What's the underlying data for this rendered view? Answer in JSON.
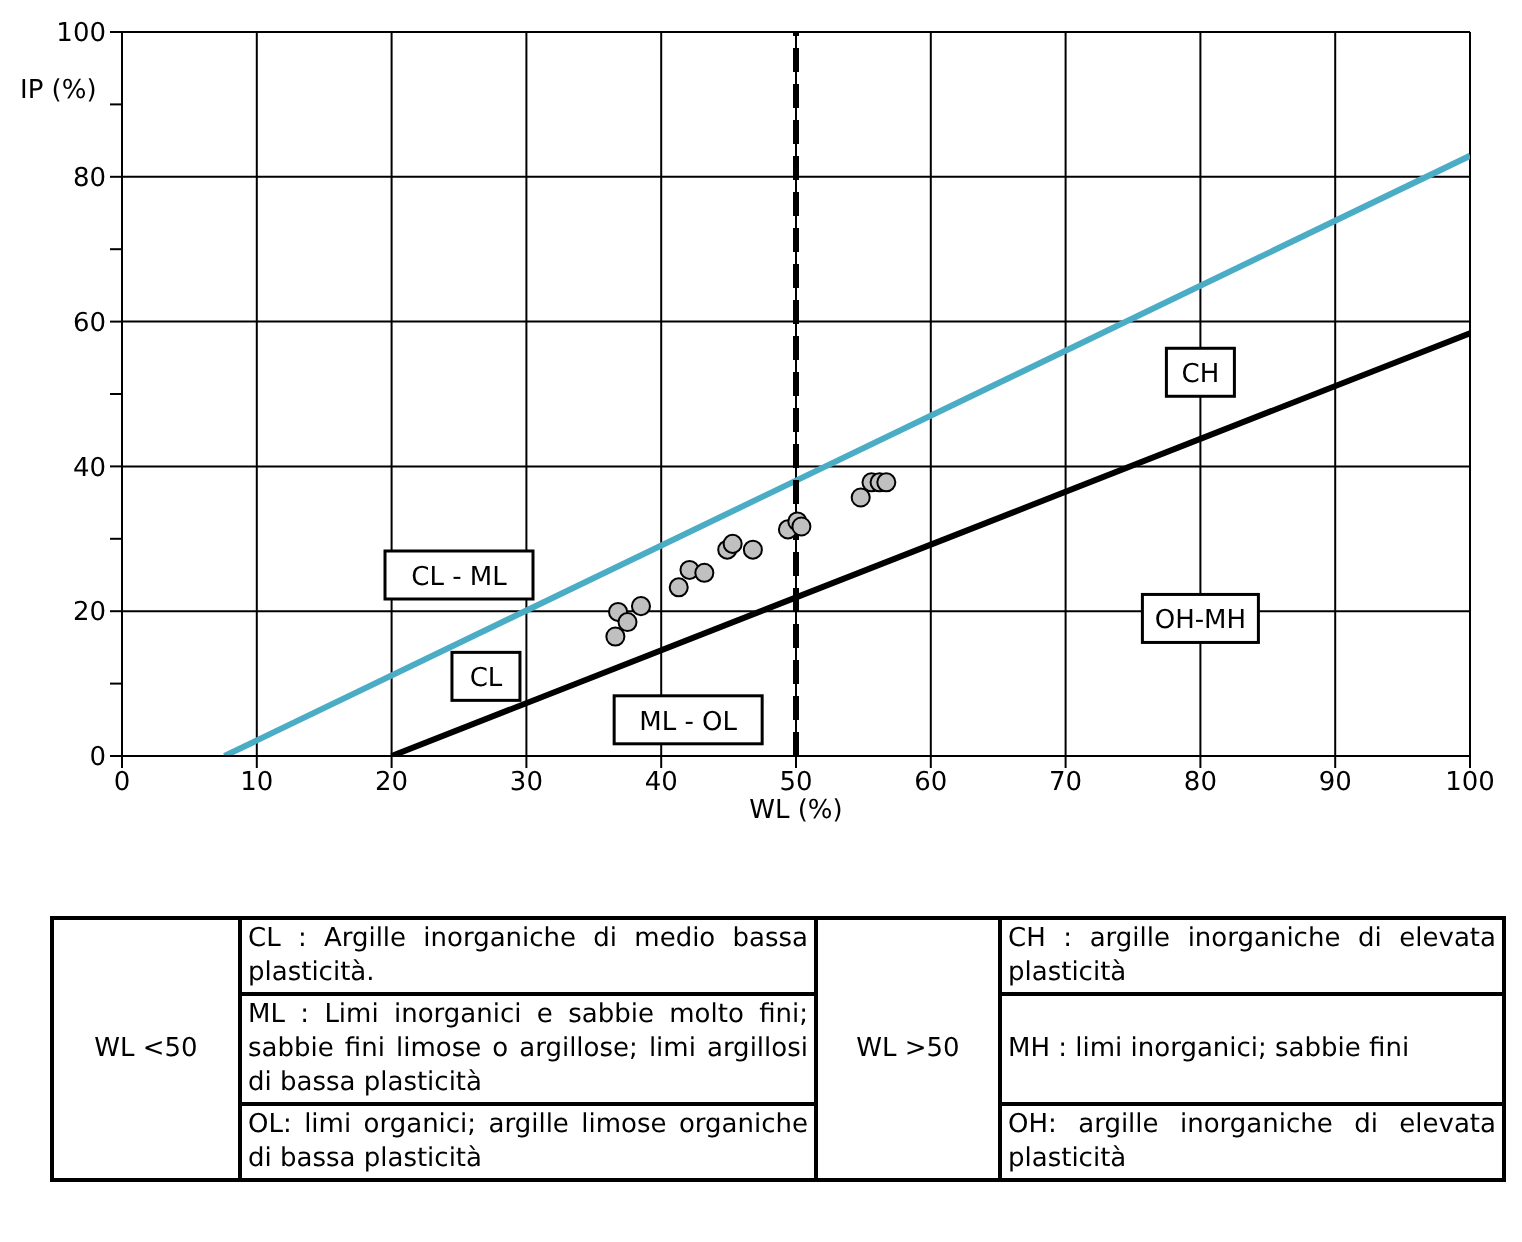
{
  "chart_data": {
    "type": "scatter",
    "xlabel": "WL (%)",
    "ylabel": "IP (%)",
    "xlim": [
      0,
      100
    ],
    "xticks": [
      0,
      10,
      20,
      30,
      40,
      50,
      60,
      70,
      80,
      90,
      100
    ],
    "ylim": [
      0,
      100
    ],
    "yticks": [
      0,
      {
        "value": 10,
        "label": null
      },
      20,
      {
        "value": 30,
        "label": null
      },
      40,
      {
        "value": 50,
        "label": null
      },
      60,
      {
        "value": 70,
        "label": null
      },
      80,
      {
        "value": 90,
        "label": null
      },
      100
    ],
    "grid": true,
    "series": [
      {
        "type": "line",
        "marker": "none",
        "color": "#4bacc6",
        "x": [
          7.6,
          100
        ],
        "values": [
          0,
          82.9
        ]
      },
      {
        "type": "line",
        "marker": "none",
        "color": "#000000",
        "x": [
          20,
          100
        ],
        "values": [
          0,
          58.4
        ]
      },
      {
        "marker": "circle",
        "color": "#c0c0c0",
        "x": [
          36.8,
          37.5,
          36.6,
          38.5,
          41.3,
          42.1,
          43.2,
          44.9,
          45.3,
          46.8,
          49.4,
          50.1,
          50.4,
          54.8,
          55.6,
          56.2,
          56.7
        ],
        "values": [
          19.9,
          18.5,
          16.5,
          20.7,
          23.3,
          25.7,
          25.3,
          28.5,
          29.3,
          28.5,
          31.3,
          32.4,
          31.7,
          35.7,
          37.8,
          37.8,
          37.8
        ]
      }
    ],
    "ref_lines": [
      {
        "axis": "x",
        "value": 50,
        "color": "#000000",
        "line_style": "dashed"
      }
    ],
    "annotations": [
      "CL - ML",
      "CL",
      "ML - OL",
      "CH",
      "OH-MH",
      "WL <50",
      "CL : Argille inorganiche di medio bassa plasticità.",
      "ML : Limi inorganici e sabbie molto fini; sabbie fini limose o argillose; limi argillosi di bassa plasticità",
      "OL: limi organici; argille limose organiche di bassa plasticità",
      "WL >50",
      "CH : argille inorganiche di elevata plasticità",
      "MH : limi inorganici; sabbie fini",
      "OH: argille inorganiche di elevata plasticità"
    ]
  }
}
